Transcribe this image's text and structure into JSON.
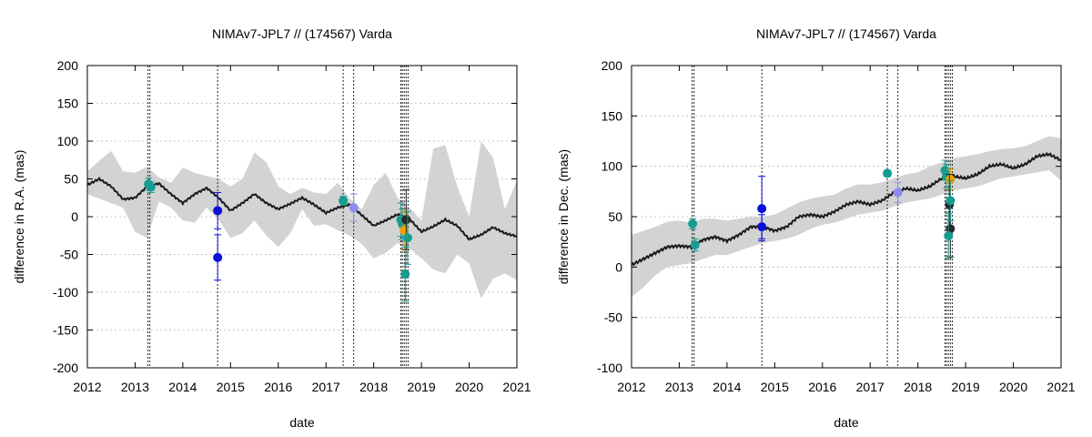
{
  "chart_data": [
    {
      "type": "line",
      "title": "NIMAv7-JPL7 // (174567) Varda",
      "xlabel": "date",
      "ylabel": "difference in R.A. (mas)",
      "xlim": [
        2012,
        2021
      ],
      "ylim": [
        -200,
        200
      ],
      "xticks": [
        "2012",
        "2013",
        "2014",
        "2015",
        "2016",
        "2017",
        "2018",
        "2019",
        "2020",
        "2021"
      ],
      "yticks": [
        "-200",
        "-150",
        "-100",
        "-50",
        "0",
        "50",
        "100",
        "150",
        "200"
      ],
      "grid": true,
      "colors": {
        "band": "#d3d3d3",
        "curve": "#1a1a1a",
        "teal": "#179c92",
        "blue": "#0b10d6",
        "lightblue": "#8c8cf2",
        "orange": "#f5a200",
        "black": "#2a2a2a"
      },
      "model_curve": {
        "x": [
          2012.0,
          2012.25,
          2012.5,
          2012.75,
          2013.0,
          2013.25,
          2013.5,
          2013.75,
          2014.0,
          2014.25,
          2014.5,
          2014.75,
          2015.0,
          2015.25,
          2015.5,
          2015.75,
          2016.0,
          2016.25,
          2016.5,
          2016.75,
          2017.0,
          2017.25,
          2017.5,
          2017.75,
          2018.0,
          2018.25,
          2018.5,
          2018.75,
          2019.0,
          2019.25,
          2019.5,
          2019.75,
          2020.0,
          2020.25,
          2020.5,
          2020.75,
          2021.0
        ],
        "y": [
          42,
          50,
          40,
          23,
          25,
          40,
          44,
          30,
          18,
          30,
          38,
          25,
          8,
          18,
          30,
          18,
          10,
          17,
          25,
          16,
          5,
          12,
          16,
          2,
          -12,
          -5,
          3,
          -3,
          -20,
          -13,
          -4,
          -12,
          -30,
          -24,
          -14,
          -22,
          -26
        ]
      },
      "uncertainty_band": {
        "x": [
          2012.0,
          2012.25,
          2012.5,
          2012.75,
          2013.0,
          2013.25,
          2013.5,
          2013.75,
          2014.0,
          2014.25,
          2014.5,
          2014.75,
          2015.0,
          2015.25,
          2015.5,
          2015.75,
          2016.0,
          2016.25,
          2016.5,
          2016.75,
          2017.0,
          2017.25,
          2017.5,
          2017.75,
          2018.0,
          2018.25,
          2018.5,
          2018.75,
          2019.0,
          2019.25,
          2019.5,
          2019.75,
          2020.0,
          2020.25,
          2020.5,
          2020.75,
          2021.0
        ],
        "upper": [
          60,
          74,
          87,
          60,
          58,
          66,
          52,
          45,
          65,
          58,
          54,
          50,
          40,
          50,
          85,
          72,
          40,
          30,
          38,
          32,
          30,
          45,
          24,
          10,
          42,
          58,
          25,
          12,
          -5,
          90,
          95,
          40,
          0,
          100,
          78,
          10,
          48
        ],
        "lower": [
          30,
          24,
          18,
          12,
          -20,
          -28,
          20,
          12,
          -5,
          -8,
          12,
          -4,
          -28,
          -22,
          -5,
          -25,
          -40,
          -22,
          10,
          -12,
          -10,
          -18,
          -25,
          -36,
          -55,
          -48,
          -35,
          -42,
          -55,
          -70,
          -75,
          -50,
          -62,
          -108,
          -82,
          -75,
          -84
        ]
      },
      "observation_lines": [
        2013.27,
        2013.31,
        2014.73,
        2017.36,
        2017.58,
        2018.57,
        2018.6,
        2018.64,
        2018.68,
        2018.72
      ],
      "observations": [
        {
          "x": 2013.28,
          "y": 43,
          "err": 8,
          "color": "teal"
        },
        {
          "x": 2013.33,
          "y": 39,
          "err": 7,
          "color": "teal"
        },
        {
          "x": 2014.73,
          "y": 8,
          "err": 24,
          "color": "blue"
        },
        {
          "x": 2014.73,
          "y": -54,
          "err": 30,
          "color": "blue"
        },
        {
          "x": 2017.36,
          "y": 21,
          "err": 6,
          "color": "teal"
        },
        {
          "x": 2017.58,
          "y": 12,
          "err": 18,
          "color": "lightblue"
        },
        {
          "x": 2018.57,
          "y": -4,
          "err": 22,
          "color": "teal"
        },
        {
          "x": 2018.6,
          "y": -10,
          "err": 20,
          "color": "teal"
        },
        {
          "x": 2018.64,
          "y": -18,
          "err": 26,
          "color": "orange"
        },
        {
          "x": 2018.68,
          "y": -4,
          "err": 40,
          "color": "black"
        },
        {
          "x": 2018.71,
          "y": -28,
          "err": 35,
          "color": "teal"
        },
        {
          "x": 2018.66,
          "y": -76,
          "err": 36,
          "color": "teal"
        }
      ]
    },
    {
      "type": "line",
      "title": "NIMAv7-JPL7 // (174567) Varda",
      "xlabel": "date",
      "ylabel": "difference in Dec. (mas)",
      "xlim": [
        2012,
        2021
      ],
      "ylim": [
        -100,
        200
      ],
      "xticks": [
        "2012",
        "2013",
        "2014",
        "2015",
        "2016",
        "2017",
        "2018",
        "2019",
        "2020",
        "2021"
      ],
      "yticks": [
        "-100",
        "-50",
        "0",
        "50",
        "100",
        "150",
        "200"
      ],
      "grid": true,
      "colors": {
        "band": "#d3d3d3",
        "curve": "#1a1a1a",
        "teal": "#179c92",
        "blue": "#0b10d6",
        "lightblue": "#8c8cf2",
        "orange": "#f5a200",
        "black": "#2a2a2a"
      },
      "model_curve": {
        "x": [
          2012.0,
          2012.25,
          2012.5,
          2012.75,
          2013.0,
          2013.25,
          2013.5,
          2013.75,
          2014.0,
          2014.25,
          2014.5,
          2014.75,
          2015.0,
          2015.25,
          2015.5,
          2015.75,
          2016.0,
          2016.25,
          2016.5,
          2016.75,
          2017.0,
          2017.25,
          2017.5,
          2017.75,
          2018.0,
          2018.25,
          2018.5,
          2018.75,
          2019.0,
          2019.25,
          2019.5,
          2019.75,
          2020.0,
          2020.25,
          2020.5,
          2020.75,
          2021.0
        ],
        "y": [
          2,
          8,
          14,
          20,
          21,
          20,
          27,
          30,
          26,
          32,
          40,
          40,
          36,
          40,
          50,
          52,
          50,
          55,
          62,
          65,
          62,
          66,
          74,
          78,
          76,
          80,
          88,
          90,
          88,
          92,
          100,
          102,
          98,
          102,
          110,
          112,
          106
        ]
      },
      "uncertainty_band": {
        "x": [
          2012.0,
          2012.25,
          2012.5,
          2012.75,
          2013.0,
          2013.25,
          2013.5,
          2013.75,
          2014.0,
          2014.25,
          2014.5,
          2014.75,
          2015.0,
          2015.25,
          2015.5,
          2015.75,
          2016.0,
          2016.25,
          2016.5,
          2016.75,
          2017.0,
          2017.25,
          2017.5,
          2017.75,
          2018.0,
          2018.25,
          2018.5,
          2018.75,
          2019.0,
          2019.25,
          2019.5,
          2019.75,
          2020.0,
          2020.25,
          2020.5,
          2020.75,
          2021.0
        ],
        "upper": [
          32,
          36,
          40,
          45,
          46,
          44,
          48,
          48,
          46,
          48,
          50,
          50,
          52,
          58,
          64,
          68,
          70,
          72,
          78,
          82,
          82,
          84,
          88,
          92,
          94,
          100,
          104,
          108,
          110,
          112,
          115,
          117,
          118,
          120,
          125,
          130,
          128
        ],
        "lower": [
          -30,
          -20,
          -8,
          0,
          2,
          4,
          8,
          12,
          12,
          16,
          20,
          24,
          26,
          28,
          32,
          38,
          42,
          44,
          48,
          52,
          54,
          56,
          60,
          64,
          66,
          68,
          72,
          76,
          78,
          80,
          84,
          88,
          90,
          92,
          94,
          96,
          86
        ]
      },
      "observation_lines": [
        2013.27,
        2013.31,
        2014.73,
        2017.36,
        2017.58,
        2018.57,
        2018.6,
        2018.64,
        2018.68,
        2018.72
      ],
      "observations": [
        {
          "x": 2013.28,
          "y": 43,
          "err": 5,
          "color": "teal"
        },
        {
          "x": 2013.33,
          "y": 22,
          "err": 6,
          "color": "teal"
        },
        {
          "x": 2014.73,
          "y": 58,
          "err": 32,
          "color": "blue"
        },
        {
          "x": 2014.73,
          "y": 40,
          "err": 12,
          "color": "blue"
        },
        {
          "x": 2017.36,
          "y": 93,
          "err": 3,
          "color": "teal"
        },
        {
          "x": 2017.58,
          "y": 74,
          "err": 10,
          "color": "lightblue"
        },
        {
          "x": 2018.57,
          "y": 96,
          "err": 10,
          "color": "teal"
        },
        {
          "x": 2018.6,
          "y": 90,
          "err": 12,
          "color": "teal"
        },
        {
          "x": 2018.68,
          "y": 87,
          "err": 10,
          "color": "orange"
        },
        {
          "x": 2018.66,
          "y": 62,
          "err": 30,
          "color": "black"
        },
        {
          "x": 2018.68,
          "y": 38,
          "err": 28,
          "color": "black"
        },
        {
          "x": 2018.68,
          "y": 66,
          "err": 20,
          "color": "teal"
        },
        {
          "x": 2018.64,
          "y": 31,
          "err": 22,
          "color": "teal"
        }
      ]
    }
  ]
}
